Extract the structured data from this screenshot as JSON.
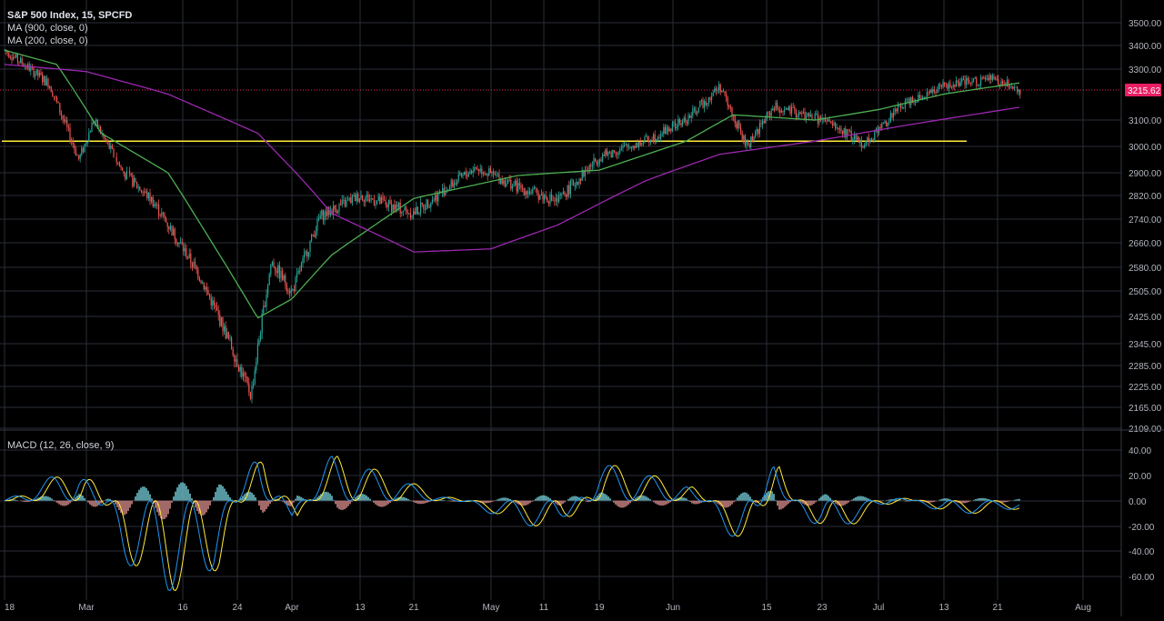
{
  "chart": {
    "title": "S&P 500 Index, 15, SPCFD",
    "ma1_label": "MA (900, close, 0)",
    "ma2_label": "MA (200, close, 0)",
    "macd_label": "MACD (12, 26, close, 9)",
    "last_price_label": "3215.62"
  },
  "colors": {
    "background": "#000000",
    "grid": "#2a2e39",
    "up_candle": "#26a69a",
    "down_candle": "#ef5350",
    "ma_900": "#4caf50",
    "ma_200": "#9c27b0",
    "support_line": "#ffeb3b",
    "price_line": "#e91e63",
    "macd_line": "#2196f3",
    "signal_line": "#ffeb3b",
    "hist_up": "#80deea",
    "hist_down": "#ef9a9a"
  },
  "chart_data": {
    "type": "line",
    "main_axis": {
      "ticks": [
        "3500.00",
        "3400.00",
        "3300.00",
        "3215.62",
        "3100.00",
        "3000.00",
        "2900.00",
        "2820.00",
        "2740.00",
        "2660.00",
        "2580.00",
        "2505.00",
        "2425.00",
        "2345.00",
        "2285.00",
        "2225.00",
        "2165.00",
        "2109.00"
      ],
      "ylim": [
        2109,
        3500
      ]
    },
    "macd_axis": {
      "ticks": [
        "40.00",
        "20.00",
        "0.00",
        "-20.00",
        "-40.00",
        "-60.00"
      ],
      "ylim": [
        -60,
        40
      ]
    },
    "x_tick_labels": [
      "18",
      "Mar",
      "16",
      "24",
      "Apr",
      "13",
      "21",
      "May",
      "11",
      "19",
      "Jun",
      "15",
      "23",
      "Jul",
      "13",
      "21",
      "Aug"
    ],
    "support_level": 3020,
    "last_price": 3215.62,
    "series": [
      {
        "name": "S&P 500 Index",
        "x": [
          "Feb 18",
          "Feb 24",
          "Feb 28",
          "Mar 2",
          "Mar 6",
          "Mar 10",
          "Mar 16",
          "Mar 20",
          "Mar 23",
          "Mar 26",
          "Apr 1",
          "Apr 6",
          "Apr 13",
          "Apr 21",
          "Apr 29",
          "May 6",
          "May 13",
          "May 19",
          "May 27",
          "Jun 3",
          "Jun 8",
          "Jun 12",
          "Jun 16",
          "Jun 23",
          "Jun 29",
          "Jul 6",
          "Jul 13",
          "Jul 20",
          "Jul 24"
        ],
        "values": [
          3380,
          3240,
          2950,
          3100,
          2900,
          2800,
          2560,
          2350,
          2200,
          2600,
          2500,
          2750,
          2820,
          2760,
          2920,
          2850,
          2800,
          2960,
          3020,
          3100,
          3230,
          3000,
          3150,
          3100,
          3010,
          3170,
          3230,
          3260,
          3215
        ]
      },
      {
        "name": "MA (900, close, 0)",
        "x": [
          "Feb 18",
          "Feb 25",
          "Mar 3",
          "Mar 12",
          "Mar 18",
          "Mar 24",
          "Apr 1",
          "Apr 8",
          "Apr 21",
          "May 6",
          "May 19",
          "Jun 3",
          "Jun 10",
          "Jun 22",
          "Jul 1",
          "Jul 13",
          "Jul 24"
        ],
        "values": [
          3380,
          3320,
          3050,
          2900,
          2650,
          2420,
          2480,
          2620,
          2810,
          2890,
          2910,
          3020,
          3120,
          3100,
          3140,
          3200,
          3245
        ]
      },
      {
        "name": "MA (200, close, 0)",
        "x": [
          "Feb 18",
          "Mar 1",
          "Mar 12",
          "Mar 24",
          "Apr 8",
          "Apr 21",
          "May 1",
          "May 13",
          "May 27",
          "Jun 8",
          "Jun 22",
          "Jul 6",
          "Jul 24"
        ],
        "values": [
          3320,
          3290,
          3200,
          3050,
          2760,
          2630,
          2640,
          2720,
          2870,
          2970,
          3020,
          3080,
          3150
        ]
      },
      {
        "name": "MACD (12, 26, close, 9)",
        "x": [
          "Feb 18",
          "Feb 28",
          "Mar 6",
          "Mar 12",
          "Mar 18",
          "Mar 24",
          "Apr 1",
          "Apr 8",
          "Apr 21",
          "May 6",
          "May 13",
          "May 19",
          "Jun 3",
          "Jun 12",
          "Jun 16",
          "Jun 23",
          "Jul 6",
          "Jul 13",
          "Jul 24"
        ],
        "values": [
          0,
          25,
          -40,
          -60,
          -45,
          35,
          -10,
          30,
          10,
          -15,
          -20,
          25,
          10,
          -35,
          25,
          -25,
          5,
          -10,
          -5
        ]
      }
    ]
  }
}
